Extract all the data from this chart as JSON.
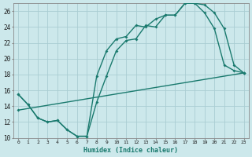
{
  "xlabel": "Humidex (Indice chaleur)",
  "bg_color": "#cce8eb",
  "line_color": "#1a7a6e",
  "grid_color": "#aacdd2",
  "xlim": [
    0,
    23
  ],
  "ylim": [
    10,
    27
  ],
  "xticks": [
    0,
    1,
    2,
    3,
    4,
    5,
    6,
    7,
    8,
    9,
    10,
    11,
    12,
    13,
    14,
    15,
    16,
    17,
    18,
    19,
    20,
    21,
    22,
    23
  ],
  "yticks": [
    10,
    12,
    14,
    16,
    18,
    20,
    22,
    24,
    26
  ],
  "line1_x": [
    0,
    1,
    2,
    3,
    4,
    5,
    6,
    7,
    8,
    9,
    10,
    11,
    12,
    13,
    14,
    15,
    16,
    17,
    18,
    19,
    20,
    21,
    22,
    23
  ],
  "line1_y": [
    15.5,
    14.2,
    12.5,
    12.0,
    12.2,
    11.0,
    10.2,
    10.2,
    17.8,
    21.0,
    22.5,
    22.8,
    24.2,
    24.0,
    25.0,
    25.5,
    25.5,
    27.0,
    27.0,
    25.8,
    23.8,
    19.2,
    18.5,
    18.2
  ],
  "line2_x": [
    0,
    1,
    2,
    3,
    4,
    5,
    6,
    7,
    8,
    9,
    10,
    11,
    12,
    13,
    14,
    15,
    16,
    17,
    18,
    19,
    20,
    21,
    22,
    23
  ],
  "line2_y": [
    15.5,
    14.2,
    12.5,
    12.0,
    12.2,
    11.0,
    10.2,
    10.2,
    14.5,
    17.8,
    21.0,
    22.3,
    22.5,
    24.2,
    24.0,
    25.5,
    25.5,
    27.0,
    27.0,
    26.8,
    25.8,
    23.8,
    19.2,
    18.2
  ],
  "line3_x": [
    0,
    23
  ],
  "line3_y": [
    13.5,
    18.2
  ]
}
